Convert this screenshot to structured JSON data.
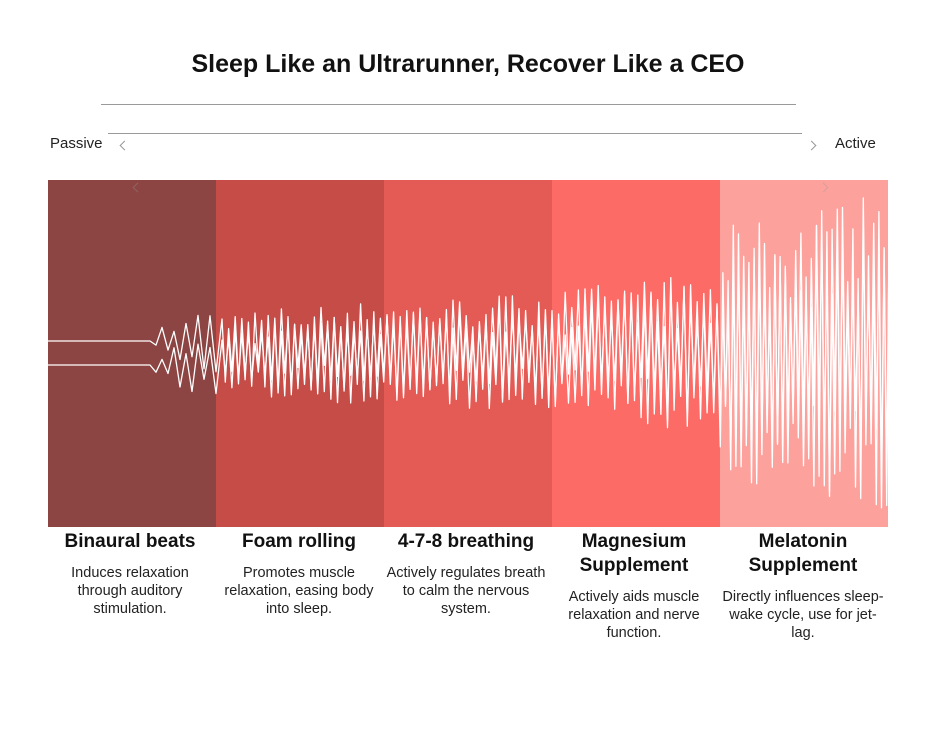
{
  "title": "Sleep Like an Ultrarunner, Recover Like a CEO",
  "scale": {
    "left_label": "Passive",
    "right_label": "Active"
  },
  "colors": {
    "band_1": "#8c4543",
    "band_2": "#c54c47",
    "band_3": "#e45a54",
    "band_4": "#fc6b65",
    "band_5": "#fda19c",
    "wave": "#ffffff"
  },
  "columns": [
    {
      "title": "Binaural beats",
      "description": "Induces relaxation through auditory stimulation."
    },
    {
      "title": "Foam rolling",
      "description": "Promotes muscle relaxation, easing body into sleep."
    },
    {
      "title": "4-7-8 breathing",
      "description": "Actively regulates breath to calm the nervous system."
    },
    {
      "title": "Magnesium Supplement",
      "description": "Actively aids muscle relaxation and nerve function."
    },
    {
      "title": "Melatonin Supplement",
      "description": "Directly influences sleep-wake cycle, use for jet-lag."
    }
  ]
}
